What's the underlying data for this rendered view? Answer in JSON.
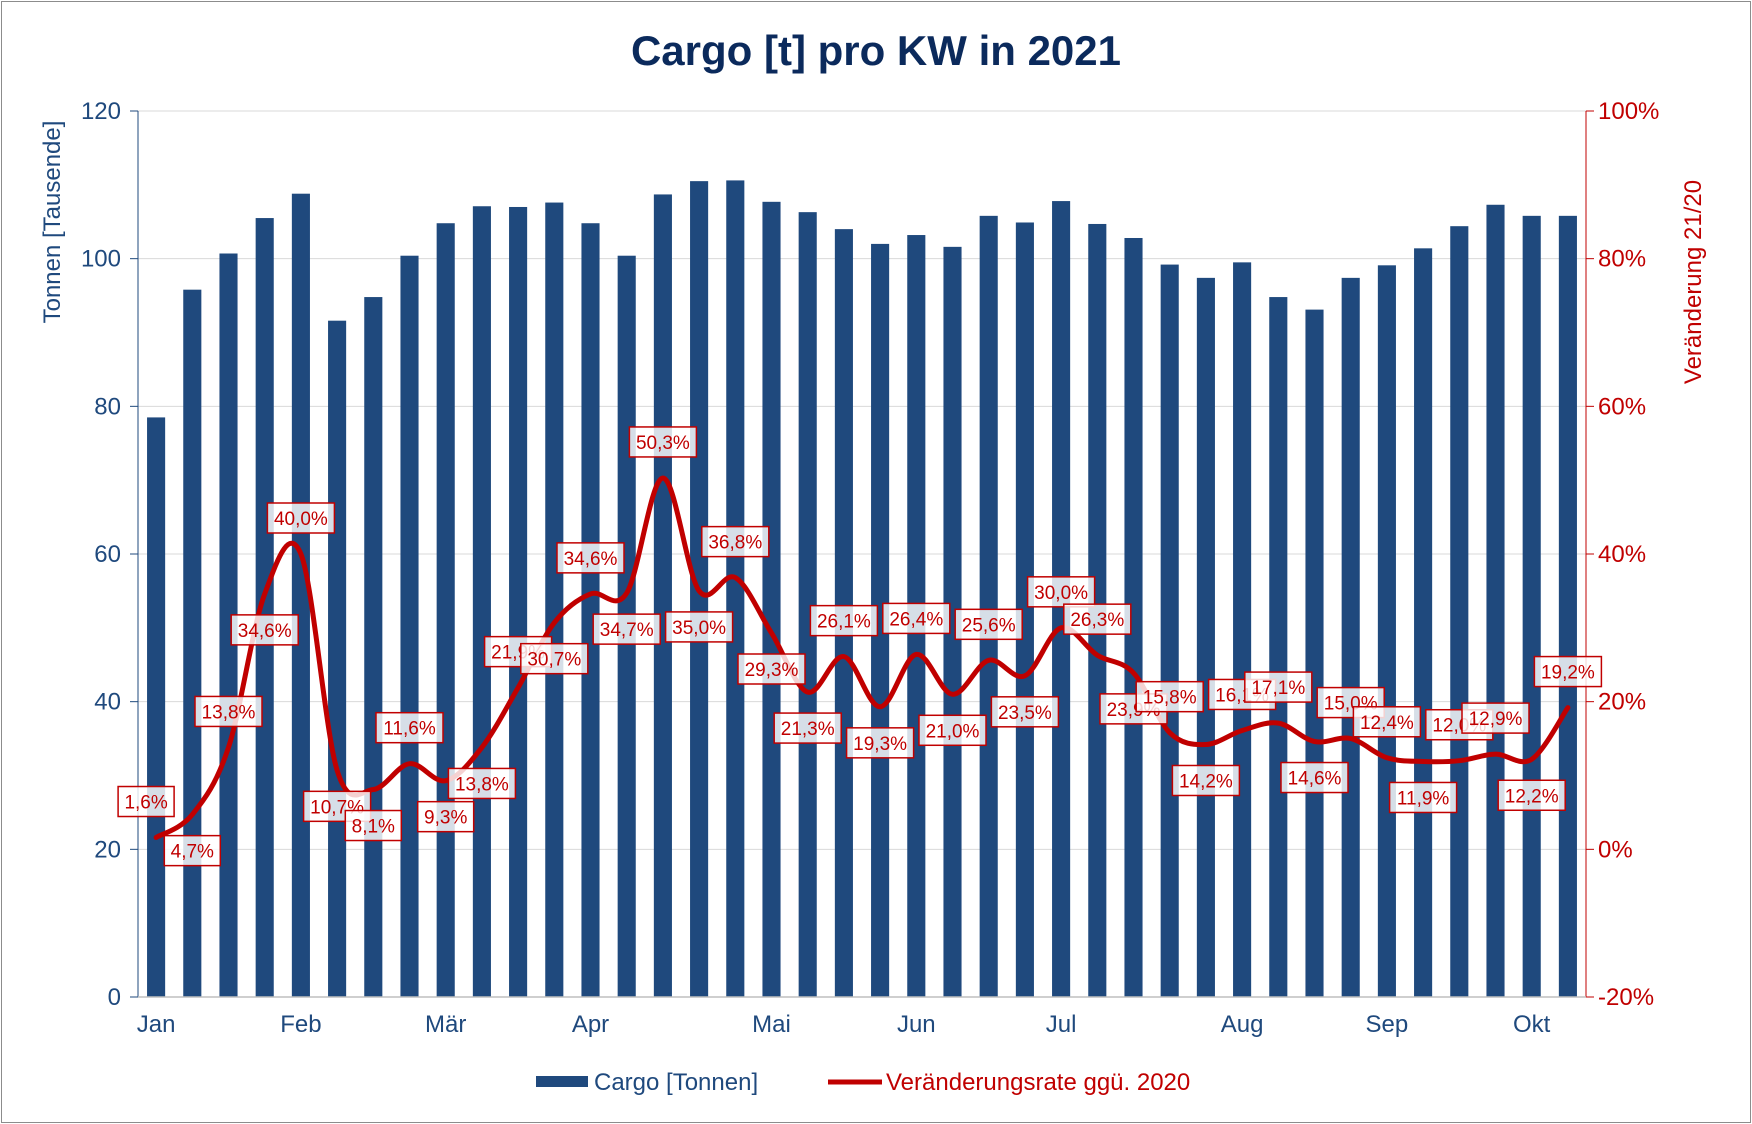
{
  "chart_data": {
    "title": "Cargo [t] pro KW in 2021",
    "type": "bar",
    "y1_label": "Tonnen [Tausende]",
    "y2_label": "Veränderung 21/20",
    "y1_range": [
      0,
      120
    ],
    "y1_ticks": [
      "0",
      "20",
      "40",
      "60",
      "80",
      "100",
      "120"
    ],
    "y2_range": [
      -20,
      100
    ],
    "y2_ticks": [
      "-20%",
      "0%",
      "20%",
      "40%",
      "60%",
      "80%",
      "100%"
    ],
    "x_month_labels": [
      "Jan",
      "Feb",
      "Mär",
      "Apr",
      "Mai",
      "Jun",
      "Jul",
      "Aug",
      "Sep",
      "Okt"
    ],
    "x_month_week_index": [
      0,
      4,
      8,
      12,
      17,
      21,
      25,
      30,
      34,
      38
    ],
    "gridlines": true,
    "legend_position": "bottom",
    "colors": {
      "bars": "#1f497d",
      "line": "#c00000",
      "title": "#0b2a5c",
      "axis_left": "#1f497d",
      "axis_right": "#c00000"
    },
    "series": [
      {
        "name": "Cargo [Tonnen]",
        "type": "bar",
        "axis": "left",
        "values": [
          78.5,
          95.8,
          100.7,
          105.5,
          108.8,
          91.6,
          94.8,
          100.4,
          104.8,
          107.1,
          107.0,
          107.6,
          104.8,
          100.4,
          108.7,
          110.5,
          110.6,
          107.7,
          106.3,
          104.0,
          102.0,
          103.2,
          101.6,
          105.8,
          104.9,
          107.8,
          104.7,
          102.8,
          99.2,
          97.4,
          99.5,
          94.8,
          93.1,
          97.4,
          99.1,
          101.4,
          104.4,
          107.3,
          105.8,
          105.8
        ]
      },
      {
        "name": "Veränderungsrate ggü. 2020",
        "type": "line",
        "axis": "right",
        "values": [
          1.6,
          4.7,
          13.8,
          34.6,
          40.0,
          10.7,
          8.1,
          11.6,
          9.3,
          13.8,
          21.9,
          30.7,
          34.6,
          34.7,
          50.3,
          35.0,
          36.8,
          29.3,
          21.3,
          26.1,
          19.3,
          26.4,
          21.0,
          25.6,
          23.5,
          30.0,
          26.3,
          23.9,
          15.8,
          14.2,
          16.1,
          17.1,
          14.6,
          15.0,
          12.4,
          11.9,
          12.0,
          12.9,
          12.2,
          19.2
        ],
        "labels": [
          "1,6%",
          "4,7%",
          "13,8%",
          "34,6%",
          "40,0%",
          "10,7%",
          "8,1%",
          "11,6%",
          "9,3%",
          "13,8%",
          "21,9%",
          "30,7%",
          "34,6%",
          "34,7%",
          "50,3%",
          "35,0%",
          "36,8%",
          "29,3%",
          "21,3%",
          "26,1%",
          "19,3%",
          "26,4%",
          "21,0%",
          "25,6%",
          "23,5%",
          "30,0%",
          "26,3%",
          "23,9%",
          "15,8%",
          "14,2%",
          "16,1%",
          "17,1%",
          "14,6%",
          "15,0%",
          "12,4%",
          "11,9%",
          "12,0%",
          "12,9%",
          "12,2%",
          "19,2%"
        ]
      }
    ]
  }
}
